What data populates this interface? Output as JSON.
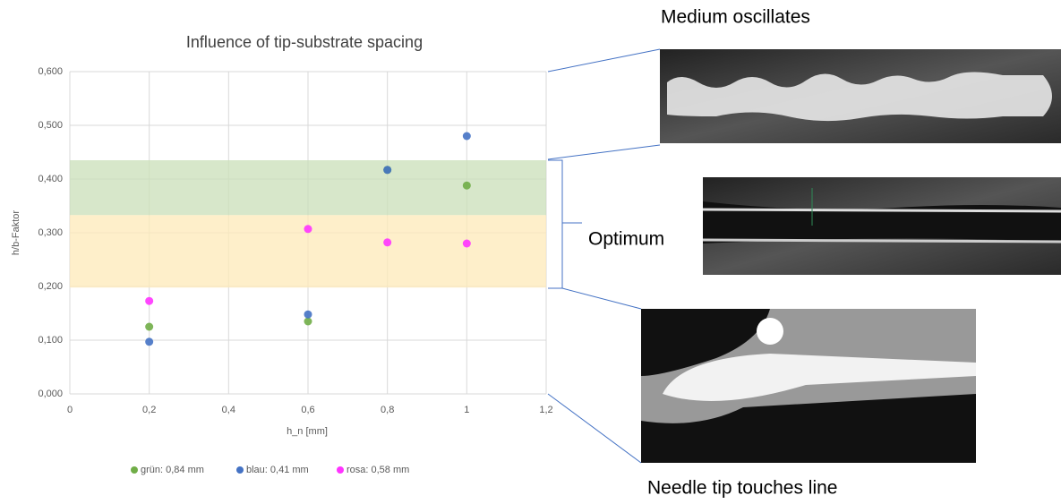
{
  "chart_data": {
    "type": "scatter",
    "title": "Influence of tip-substrate spacing",
    "x_label": "h_n [mm]",
    "y_label": "h/b-Faktor",
    "xlim": [
      0,
      1.2
    ],
    "ylim": [
      0,
      0.6
    ],
    "xticks": [
      0,
      {
        "value": 0.2,
        "label": "0,2"
      },
      {
        "value": 0.4,
        "label": "0,4"
      },
      {
        "value": 0.6,
        "label": "0,6"
      },
      {
        "value": 0.8,
        "label": "0,8"
      },
      1,
      {
        "value": 1.2,
        "label": "1,2"
      }
    ],
    "yticks": [
      {
        "value": 0,
        "label": "0,000"
      },
      {
        "value": 0.1,
        "label": "0,100"
      },
      {
        "value": 0.2,
        "label": "0,200"
      },
      {
        "value": 0.3,
        "label": "0,300"
      },
      {
        "value": 0.4,
        "label": "0,400"
      },
      {
        "value": 0.5,
        "label": "0,500"
      },
      {
        "value": 0.6,
        "label": "0,600"
      }
    ],
    "grid": true,
    "bands": [
      {
        "from": 0.198,
        "to": 0.333,
        "color": "#fde9b8"
      },
      {
        "from": 0.333,
        "to": 0.435,
        "color": "#c9dfb8"
      }
    ],
    "series": [
      {
        "name": "grün: 0,84 mm",
        "color": "#70ad47",
        "x": [
          0.2,
          0.6,
          0.8,
          1
        ],
        "values": [
          0.125,
          0.135,
          0.417,
          0.388
        ]
      },
      {
        "name": "blau: 0,41 mm",
        "color": "#4472c4",
        "x": [
          0.2,
          0.6,
          0.8,
          1
        ],
        "values": [
          0.097,
          0.148,
          0.417,
          0.48
        ]
      },
      {
        "name": "rosa: 0,58 mm",
        "color": "#ff33ff",
        "x": [
          0.2,
          0.6,
          0.8,
          1
        ],
        "values": [
          0.173,
          0.307,
          0.282,
          0.28
        ]
      }
    ],
    "annotations": [
      "Medium oscillates",
      "Optimum",
      "Needle tip touches line"
    ]
  }
}
